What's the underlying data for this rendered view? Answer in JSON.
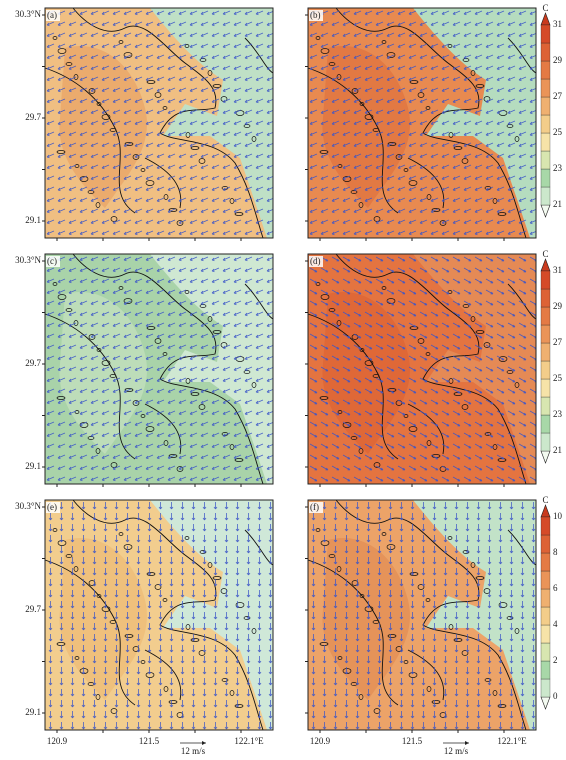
{
  "panels": [
    {
      "label": "(a)"
    },
    {
      "label": "(b)"
    },
    {
      "label": "(c)"
    },
    {
      "label": "(d)"
    },
    {
      "label": "(e)"
    },
    {
      "label": "(f)"
    }
  ],
  "y_labels": [
    "30.3°N",
    "29.7",
    "29.1"
  ],
  "x_labels": [
    "120.9",
    "121.5",
    "122.1°E"
  ],
  "colorbars": [
    {
      "unit": "C",
      "ticks": [
        21,
        23,
        25,
        27,
        29,
        31
      ]
    },
    {
      "unit": "C",
      "ticks": [
        21,
        23,
        25,
        27,
        29,
        31
      ]
    },
    {
      "unit": "C",
      "ticks": [
        0,
        2,
        4,
        6,
        8,
        10
      ]
    }
  ],
  "reference_vector": "12 m/s"
}
